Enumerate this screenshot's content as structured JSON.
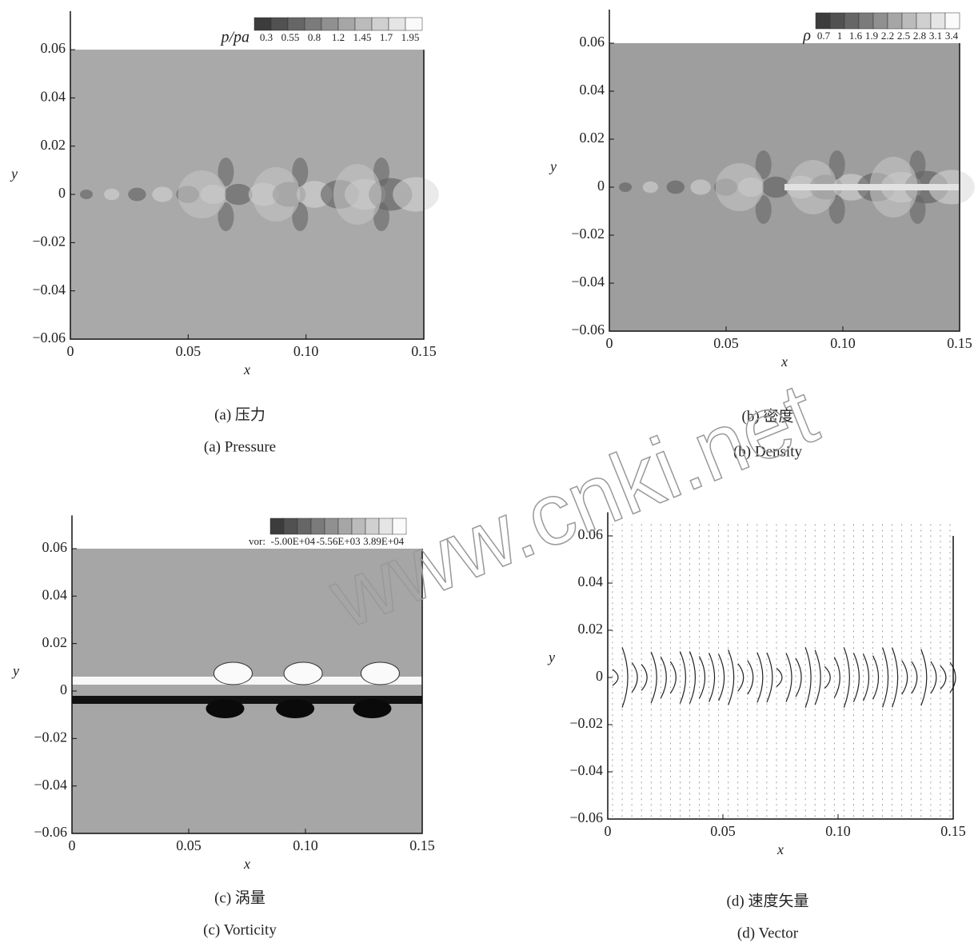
{
  "chart_data": [
    {
      "type": "contour",
      "xlabel": "x",
      "ylabel": "y",
      "xlim": [
        0,
        0.15
      ],
      "ylim": [
        -0.06,
        0.076
      ],
      "xticks": [
        0,
        0.05,
        {
          "value": 0.1,
          "label": "0.10"
        },
        0.15
      ],
      "yticks": [
        {
          "value": -0.06,
          "label": "−0.06"
        },
        {
          "value": -0.04,
          "label": "−0.04"
        },
        {
          "value": -0.02,
          "label": "−0.02"
        },
        0,
        0.02,
        0.04,
        0.06
      ],
      "colorbar": {
        "label": "p/pa",
        "ticks": [
          0.3,
          0.55,
          0.8,
          1.2,
          1.45,
          1.7,
          1.95
        ]
      },
      "captions": [
        "(a) 压力",
        "(a) Pressure"
      ]
    },
    {
      "type": "contour",
      "xlabel": "x",
      "ylabel": "y",
      "xlim": [
        0,
        0.15
      ],
      "ylim": [
        -0.06,
        0.074
      ],
      "xticks": [
        0,
        0.05,
        {
          "value": 0.1,
          "label": "0.10"
        },
        0.15
      ],
      "yticks": [
        {
          "value": -0.06,
          "label": "−0.06"
        },
        {
          "value": -0.04,
          "label": "−0.04"
        },
        {
          "value": -0.02,
          "label": "−0.02"
        },
        0,
        0.02,
        0.04,
        0.06
      ],
      "colorbar": {
        "label": "ρ",
        "ticks": [
          0.7,
          1,
          1.6,
          1.9,
          2.2,
          2.5,
          2.8,
          3.1,
          3.4
        ]
      },
      "captions": [
        "(b) 密度",
        "(b) Density"
      ]
    },
    {
      "type": "vorticity",
      "xlabel": "x",
      "ylabel": "y",
      "xlim": [
        0,
        0.15
      ],
      "ylim": [
        -0.06,
        0.074
      ],
      "xticks": [
        0,
        0.05,
        {
          "value": 0.1,
          "label": "0.10"
        },
        0.15
      ],
      "yticks": [
        {
          "value": -0.06,
          "label": "−0.06"
        },
        {
          "value": -0.04,
          "label": "−0.04"
        },
        {
          "value": -0.02,
          "label": "−0.02"
        },
        0,
        0.02,
        0.04,
        0.06
      ],
      "colorbar": {
        "label": "vor:",
        "ticks": [
          {
            "value": -50000,
            "label": "-5.00E+04"
          },
          {
            "value": -5560,
            "label": "-5.56E+03"
          },
          {
            "value": 38900,
            "label": "3.89E+04"
          }
        ]
      },
      "captions": [
        "(c) 涡量",
        "(c) Vorticity"
      ]
    },
    {
      "type": "vector",
      "xlabel": "x",
      "ylabel": "y",
      "xlim": [
        0,
        0.15
      ],
      "ylim": [
        -0.06,
        0.07
      ],
      "xticks": [
        0,
        0.05,
        {
          "value": 0.1,
          "label": "0.10"
        },
        0.15
      ],
      "yticks": [
        {
          "value": -0.06,
          "label": "−0.06"
        },
        {
          "value": -0.04,
          "label": "−0.04"
        },
        {
          "value": -0.02,
          "label": "−0.02"
        },
        0,
        0.02,
        0.04,
        0.06
      ],
      "captions": [
        "(d) 速度矢量",
        "(d) Vector"
      ]
    }
  ],
  "watermark": "www.cnki.net"
}
